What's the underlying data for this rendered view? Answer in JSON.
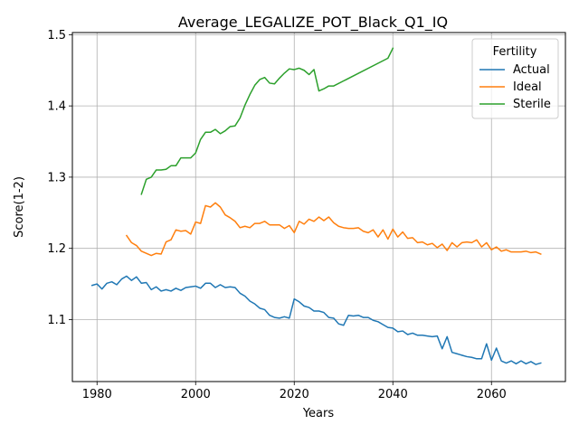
{
  "chart_data": {
    "type": "line",
    "title": "Average_LEGALIZE_POT_Black_Q1_IQ",
    "xlabel": "Years",
    "ylabel": "Score(1-2)",
    "xlim": [
      1975,
      2075
    ],
    "ylim": [
      1.013,
      1.503
    ],
    "xticks": [
      1980,
      2000,
      2020,
      2040,
      2060
    ],
    "yticks": [
      1.1,
      1.2,
      1.3,
      1.4,
      1.5
    ],
    "grid": true,
    "legend": {
      "title": "Fertility",
      "placement": "top-right"
    },
    "series": [
      {
        "name": "Actual",
        "color": "#1f77b4",
        "x": [
          1979,
          1980,
          1981,
          1982,
          1983,
          1984,
          1985,
          1986,
          1987,
          1988,
          1989,
          1990,
          1991,
          1992,
          1993,
          1994,
          1995,
          1996,
          1997,
          1998,
          1999,
          2000,
          2001,
          2002,
          2003,
          2004,
          2005,
          2006,
          2007,
          2008,
          2009,
          2010,
          2011,
          2012,
          2013,
          2014,
          2015,
          2016,
          2017,
          2018,
          2019,
          2020,
          2021,
          2022,
          2023,
          2024,
          2025,
          2026,
          2027,
          2028,
          2029,
          2030,
          2031,
          2032,
          2033,
          2034,
          2035,
          2036,
          2037,
          2038,
          2039,
          2040,
          2041,
          2042,
          2043,
          2044,
          2045,
          2046,
          2047,
          2048,
          2049,
          2050,
          2051,
          2052,
          2053,
          2054,
          2055,
          2056,
          2057,
          2058,
          2059,
          2060,
          2061,
          2062,
          2063,
          2064,
          2065,
          2066,
          2067,
          2068,
          2069,
          2070
        ],
        "values": [
          1.148,
          1.15,
          1.143,
          1.151,
          1.153,
          1.149,
          1.157,
          1.161,
          1.155,
          1.16,
          1.151,
          1.152,
          1.142,
          1.146,
          1.14,
          1.142,
          1.14,
          1.144,
          1.141,
          1.145,
          1.146,
          1.147,
          1.144,
          1.151,
          1.151,
          1.145,
          1.149,
          1.145,
          1.146,
          1.145,
          1.137,
          1.133,
          1.126,
          1.122,
          1.116,
          1.114,
          1.106,
          1.103,
          1.102,
          1.104,
          1.102,
          1.129,
          1.125,
          1.119,
          1.117,
          1.112,
          1.112,
          1.11,
          1.103,
          1.102,
          1.094,
          1.092,
          1.106,
          1.105,
          1.106,
          1.103,
          1.103,
          1.099,
          1.097,
          1.093,
          1.089,
          1.088,
          1.083,
          1.084,
          1.079,
          1.081,
          1.078,
          1.078,
          1.077,
          1.076,
          1.077,
          1.059,
          1.076,
          1.054,
          1.052,
          1.05,
          1.048,
          1.047,
          1.045,
          1.045,
          1.066,
          1.043,
          1.06,
          1.042,
          1.039,
          1.042,
          1.038,
          1.042,
          1.038,
          1.041,
          1.037,
          1.039
        ]
      },
      {
        "name": "Ideal",
        "color": "#ff7f0e",
        "x": [
          1986,
          1987,
          1988,
          1989,
          1990,
          1991,
          1992,
          1993,
          1994,
          1995,
          1996,
          1997,
          1998,
          1999,
          2000,
          2001,
          2002,
          2003,
          2004,
          2005,
          2006,
          2007,
          2008,
          2009,
          2010,
          2011,
          2012,
          2013,
          2014,
          2015,
          2016,
          2017,
          2018,
          2019,
          2020,
          2021,
          2022,
          2023,
          2024,
          2025,
          2026,
          2027,
          2028,
          2029,
          2030,
          2031,
          2032,
          2033,
          2034,
          2035,
          2036,
          2037,
          2038,
          2039,
          2040,
          2041,
          2042,
          2043,
          2044,
          2045,
          2046,
          2047,
          2048,
          2049,
          2050,
          2051,
          2052,
          2053,
          2054,
          2055,
          2056,
          2057,
          2058,
          2059,
          2060,
          2061,
          2062,
          2063,
          2064,
          2065,
          2066,
          2067,
          2068,
          2069,
          2070
        ],
        "values": [
          1.218,
          1.208,
          1.204,
          1.196,
          1.193,
          1.19,
          1.193,
          1.192,
          1.209,
          1.212,
          1.226,
          1.224,
          1.225,
          1.22,
          1.237,
          1.235,
          1.26,
          1.258,
          1.264,
          1.258,
          1.247,
          1.243,
          1.238,
          1.229,
          1.231,
          1.229,
          1.235,
          1.235,
          1.238,
          1.233,
          1.233,
          1.233,
          1.228,
          1.232,
          1.222,
          1.238,
          1.234,
          1.241,
          1.238,
          1.244,
          1.239,
          1.244,
          1.236,
          1.231,
          1.229,
          1.228,
          1.228,
          1.229,
          1.224,
          1.222,
          1.226,
          1.216,
          1.226,
          1.213,
          1.227,
          1.216,
          1.223,
          1.214,
          1.215,
          1.208,
          1.209,
          1.205,
          1.207,
          1.201,
          1.206,
          1.197,
          1.208,
          1.202,
          1.208,
          1.209,
          1.208,
          1.212,
          1.202,
          1.208,
          1.198,
          1.202,
          1.196,
          1.198,
          1.195,
          1.195,
          1.195,
          1.196,
          1.194,
          1.195,
          1.192
        ]
      },
      {
        "name": "Sterile",
        "color": "#2ca02c",
        "x": [
          1989,
          1990,
          1991,
          1992,
          1993,
          1994,
          1995,
          1996,
          1997,
          1998,
          1999,
          2000,
          2001,
          2002,
          2003,
          2004,
          2005,
          2006,
          2007,
          2008,
          2009,
          2010,
          2011,
          2012,
          2013,
          2014,
          2015,
          2016,
          2017,
          2018,
          2019,
          2020,
          2021,
          2022,
          2023,
          2024,
          2025,
          2026,
          2027,
          2028,
          2039,
          2040
        ],
        "values": [
          1.276,
          1.297,
          1.3,
          1.31,
          1.31,
          1.311,
          1.316,
          1.316,
          1.327,
          1.327,
          1.327,
          1.334,
          1.353,
          1.363,
          1.363,
          1.367,
          1.361,
          1.365,
          1.371,
          1.372,
          1.383,
          1.401,
          1.416,
          1.429,
          1.437,
          1.44,
          1.432,
          1.431,
          1.439,
          1.446,
          1.452,
          1.451,
          1.453,
          1.45,
          1.444,
          1.451,
          1.421,
          1.424,
          1.428,
          1.428,
          1.467,
          1.481
        ]
      }
    ]
  }
}
